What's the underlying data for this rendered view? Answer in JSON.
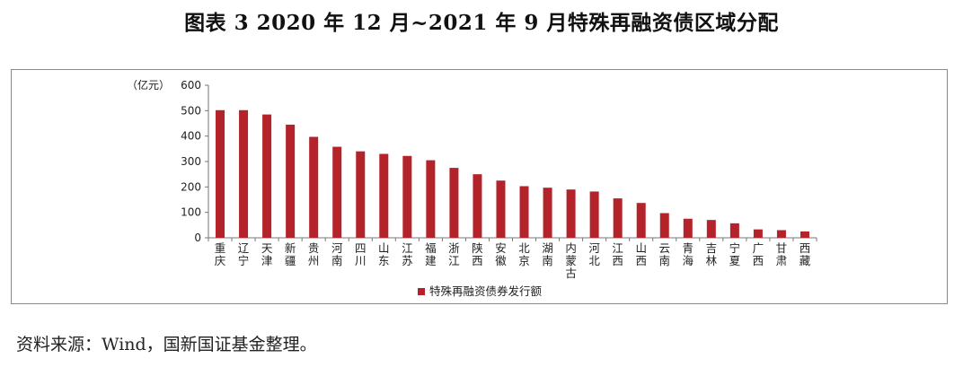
{
  "title": "图表 3  2020 年 12 月~2021 年 9 月特殊再融资债区域分配",
  "source": "资料来源：Wind，国新国证基金整理。",
  "chart_data": {
    "type": "bar",
    "unit_label": "（亿元）",
    "ylim": [
      0,
      600
    ],
    "yticks": [
      0,
      100,
      200,
      300,
      400,
      500,
      600
    ],
    "categories": [
      "重庆",
      "辽宁",
      "天津",
      "新疆",
      "贵州",
      "河南",
      "四川",
      "山东",
      "江苏",
      "福建",
      "浙江",
      "陕西",
      "安徽",
      "北京",
      "湖南",
      "内蒙古",
      "河北",
      "江西",
      "山西",
      "云南",
      "青海",
      "吉林",
      "宁夏",
      "广西",
      "甘肃",
      "西藏"
    ],
    "series": [
      {
        "name": "特殊再融资债券发行额",
        "color": "#b4232a",
        "values": [
          502,
          502,
          485,
          445,
          397,
          358,
          340,
          330,
          322,
          305,
          275,
          250,
          225,
          203,
          197,
          190,
          182,
          155,
          137,
          97,
          75,
          70,
          57,
          33,
          30,
          25
        ]
      }
    ],
    "legend_position": "bottom",
    "grid": false
  }
}
